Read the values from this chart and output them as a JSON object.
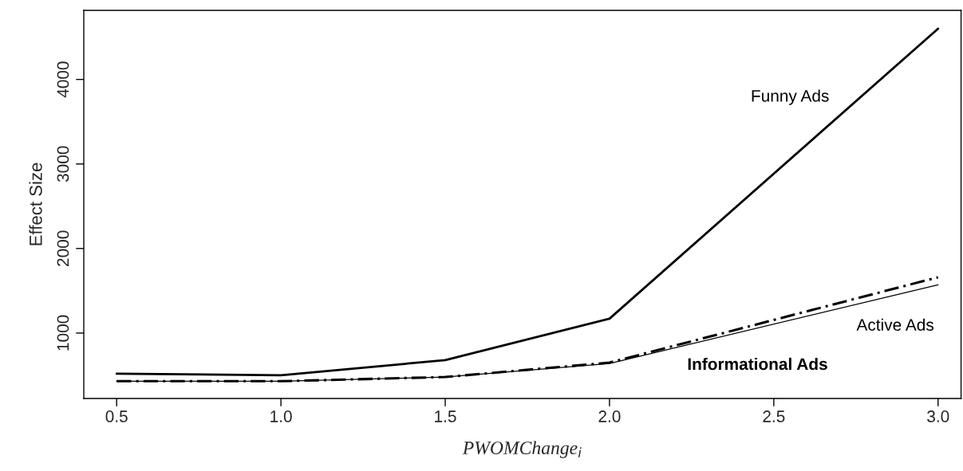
{
  "chart_data": {
    "type": "line",
    "xlabel": "PWOMChange$_{i}$",
    "ylabel": "Effect Size",
    "x": [
      0.5,
      1.0,
      1.5,
      2.0,
      3.0
    ],
    "series": [
      {
        "name": "Funny Ads",
        "color": "#000000",
        "line_style": "solid",
        "values": [
          520,
          500,
          680,
          1170,
          4600
        ]
      },
      {
        "name": "Informational Ads",
        "color": "#000000",
        "line_style": "dashed",
        "values": [
          430,
          430,
          480,
          650,
          1660
        ]
      },
      {
        "name": "Active Ads",
        "color": "#000000",
        "line_style": "solid",
        "values": [
          430,
          430,
          480,
          640,
          1570
        ]
      }
    ],
    "xlim": [
      0.4,
      3.07
    ],
    "ylim": [
      226,
      4817
    ],
    "xticks": [
      {
        "value": 0.5,
        "label": "0.5"
      },
      {
        "value": 1.0,
        "label": "1.0"
      },
      {
        "value": 1.5,
        "label": "1.5"
      },
      {
        "value": 2.0,
        "label": "2.0"
      },
      {
        "value": 2.5,
        "label": "2.5"
      },
      {
        "value": 3.0,
        "label": "3.0"
      }
    ],
    "yticks": [
      1000,
      2000,
      3000,
      4000
    ],
    "grid": false,
    "legend": false,
    "marker": "none"
  }
}
